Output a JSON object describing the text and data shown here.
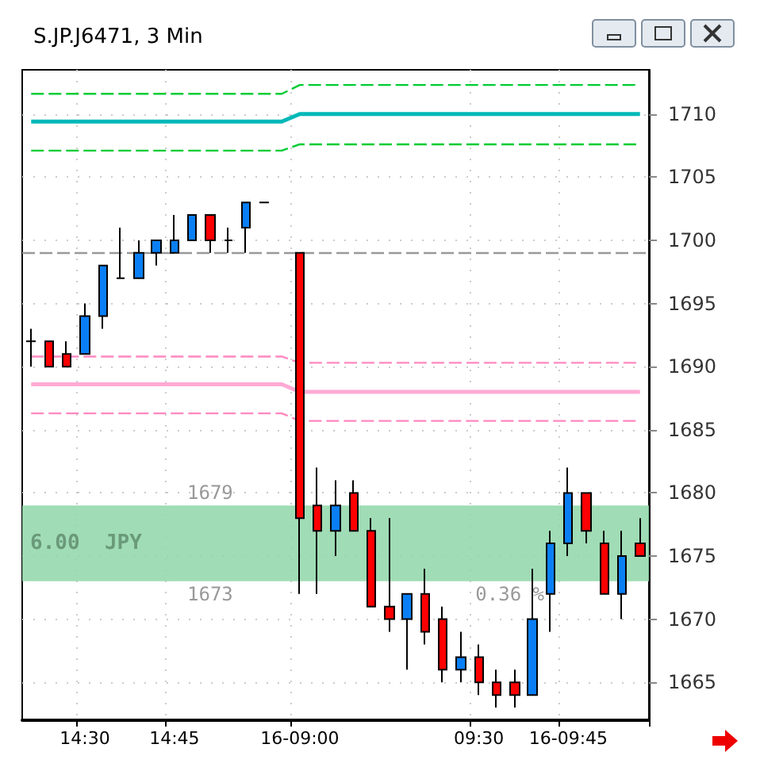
{
  "chart_data": {
    "type": "candlestick",
    "title": "S.JP.J6471, 3 Min",
    "categories": [
      null,
      null,
      null,
      "14:30",
      null,
      null,
      null,
      null,
      "14:45",
      null,
      null,
      null,
      null,
      null,
      null,
      "16-09:00",
      null,
      null,
      null,
      null,
      null,
      null,
      null,
      null,
      null,
      "09:30",
      null,
      null,
      null,
      null,
      "16-09:45",
      null,
      null,
      null,
      null
    ],
    "ohlc": [
      [
        1692,
        1693,
        1690,
        1692
      ],
      [
        1692,
        1692,
        1690,
        1690
      ],
      [
        1691,
        1692,
        1690,
        1690
      ],
      [
        1691,
        1695,
        1691,
        1694
      ],
      [
        1694,
        1698,
        1693,
        1698
      ],
      [
        1697,
        1701,
        1697,
        1697
      ],
      [
        1697,
        1700,
        1697,
        1699
      ],
      [
        1699,
        1700,
        1698,
        1700
      ],
      [
        1699,
        1702,
        1699,
        1700
      ],
      [
        1700,
        1702,
        1700,
        1702
      ],
      [
        1702,
        1702,
        1699,
        1700
      ],
      [
        1700,
        1701,
        1699,
        1700
      ],
      [
        1701,
        1703,
        1699,
        1703
      ],
      [
        1703,
        1703,
        1703,
        1703
      ],
      null,
      [
        1699,
        1699,
        1672,
        1678
      ],
      [
        1679,
        1682,
        1672,
        1677
      ],
      [
        1677,
        1681,
        1675,
        1679
      ],
      [
        1680,
        1681,
        1677,
        1677
      ],
      [
        1677,
        1678,
        1671,
        1671
      ],
      [
        1671,
        1678,
        1669,
        1670
      ],
      [
        1670,
        1672,
        1666,
        1672
      ],
      [
        1672,
        1674,
        1668,
        1669
      ],
      [
        1670,
        1671,
        1665,
        1666
      ],
      [
        1666,
        1669,
        1665,
        1667
      ],
      [
        1667,
        1668,
        1664,
        1665
      ],
      [
        1665,
        1666,
        1663,
        1664
      ],
      [
        1665,
        1666,
        1663,
        1664
      ],
      [
        1664,
        1674,
        1664,
        1670
      ],
      [
        1672,
        1677,
        1669,
        1676
      ],
      [
        1676,
        1682,
        1675,
        1680
      ],
      [
        1680,
        1680,
        1676,
        1677
      ],
      [
        1676,
        1677,
        1672,
        1672
      ],
      [
        1672,
        1677,
        1670,
        1675
      ],
      [
        1676,
        1678,
        1675,
        1675
      ]
    ],
    "colors": [
      "#000000",
      "#ff0000",
      "#ff0000",
      "#0a7ff5",
      "#0a7ff5",
      "#000000",
      "#0a7ff5",
      "#0a7ff5",
      "#0a7ff5",
      "#0a7ff5",
      "#ff0000",
      "#000000",
      "#0a7ff5",
      "#000000",
      null,
      "#ff0000",
      "#ff0000",
      "#0a7ff5",
      "#ff0000",
      "#ff0000",
      "#ff0000",
      "#0a7ff5",
      "#ff0000",
      "#ff0000",
      "#0a7ff5",
      "#ff0000",
      "#ff0000",
      "#ff0000",
      "#0a7ff5",
      "#0a7ff5",
      "#0a7ff5",
      "#ff0000",
      "#ff0000",
      "#0a7ff5",
      "#ff0000"
    ],
    "series": [
      {
        "type": "line",
        "color": "#00cc33",
        "line_style": "dashed",
        "values": [
          1711.6,
          1711.6,
          1711.6,
          1711.6,
          1711.6,
          1711.6,
          1711.6,
          1711.6,
          1711.6,
          1711.6,
          1711.6,
          1711.6,
          1711.6,
          1711.6,
          1711.6,
          1712.3,
          1712.3,
          1712.3,
          1712.3,
          1712.3,
          1712.3,
          1712.3,
          1712.3,
          1712.3,
          1712.3,
          1712.3,
          1712.3,
          1712.3,
          1712.3,
          1712.3,
          1712.3,
          1712.3,
          1712.3,
          1712.3,
          1712.3
        ]
      },
      {
        "type": "line",
        "color": "#00b8b8",
        "line_style": "solid",
        "values": [
          1709.4,
          1709.4,
          1709.4,
          1709.4,
          1709.4,
          1709.4,
          1709.4,
          1709.4,
          1709.4,
          1709.4,
          1709.4,
          1709.4,
          1709.4,
          1709.4,
          1709.4,
          1710,
          1710,
          1710,
          1710,
          1710,
          1710,
          1710,
          1710,
          1710,
          1710,
          1710,
          1710,
          1710,
          1710,
          1710,
          1710,
          1710,
          1710,
          1710,
          1710
        ]
      },
      {
        "type": "line",
        "color": "#00cc33",
        "line_style": "dashed",
        "values": [
          1707.1,
          1707.1,
          1707.1,
          1707.1,
          1707.1,
          1707.1,
          1707.1,
          1707.1,
          1707.1,
          1707.1,
          1707.1,
          1707.1,
          1707.1,
          1707.1,
          1707.1,
          1707.6,
          1707.6,
          1707.6,
          1707.6,
          1707.6,
          1707.6,
          1707.6,
          1707.6,
          1707.6,
          1707.6,
          1707.6,
          1707.6,
          1707.6,
          1707.6,
          1707.6,
          1707.6,
          1707.6,
          1707.6,
          1707.6,
          1707.6
        ]
      },
      {
        "type": "line",
        "color": "#ff88c0",
        "line_style": "dashed",
        "values": [
          1690.8,
          1690.8,
          1690.8,
          1690.8,
          1690.8,
          1690.8,
          1690.8,
          1690.8,
          1690.8,
          1690.8,
          1690.8,
          1690.8,
          1690.8,
          1690.8,
          1690.8,
          1690.3,
          1690.3,
          1690.3,
          1690.3,
          1690.3,
          1690.3,
          1690.3,
          1690.3,
          1690.3,
          1690.3,
          1690.3,
          1690.3,
          1690.3,
          1690.3,
          1690.3,
          1690.3,
          1690.3,
          1690.3,
          1690.3,
          1690.3
        ]
      },
      {
        "type": "line",
        "color": "#ffaad4",
        "line_style": "solid",
        "values": [
          1688.6,
          1688.6,
          1688.6,
          1688.6,
          1688.6,
          1688.6,
          1688.6,
          1688.6,
          1688.6,
          1688.6,
          1688.6,
          1688.6,
          1688.6,
          1688.6,
          1688.6,
          1688.0,
          1688.0,
          1688.0,
          1688.0,
          1688.0,
          1688.0,
          1688.0,
          1688.0,
          1688.0,
          1688.0,
          1688.0,
          1688.0,
          1688.0,
          1688.0,
          1688.0,
          1688.0,
          1688.0,
          1688.0,
          1688.0,
          1688.0
        ]
      },
      {
        "type": "line",
        "color": "#ff88c0",
        "line_style": "dashed",
        "values": [
          1686.3,
          1686.3,
          1686.3,
          1686.3,
          1686.3,
          1686.3,
          1686.3,
          1686.3,
          1686.3,
          1686.3,
          1686.3,
          1686.3,
          1686.3,
          1686.3,
          1686.3,
          1685.7,
          1685.7,
          1685.7,
          1685.7,
          1685.7,
          1685.7,
          1685.7,
          1685.7,
          1685.7,
          1685.7,
          1685.7,
          1685.7,
          1685.7,
          1685.7,
          1685.7,
          1685.7,
          1685.7,
          1685.7,
          1685.7,
          1685.7
        ]
      }
    ],
    "ref_lines": [
      {
        "axis": "y",
        "value": 1699,
        "color": "#999999",
        "line_style": "dashed"
      }
    ],
    "bands": [
      {
        "axis": "y",
        "from": 1673,
        "to": 1679,
        "label": "6.00  JPY",
        "color": "#8fd6a8"
      }
    ],
    "annotations": [
      {
        "text": "1679",
        "y": 1679
      },
      {
        "text": "1673",
        "y": 1673
      },
      {
        "text": "0.36 %",
        "y": 1673
      }
    ],
    "ylim": [
      1662,
      1713.5
    ],
    "yticks": [
      1665,
      1670,
      1675,
      1680,
      1685,
      1690,
      1695,
      1700,
      1705,
      1710
    ],
    "grid": true
  }
}
